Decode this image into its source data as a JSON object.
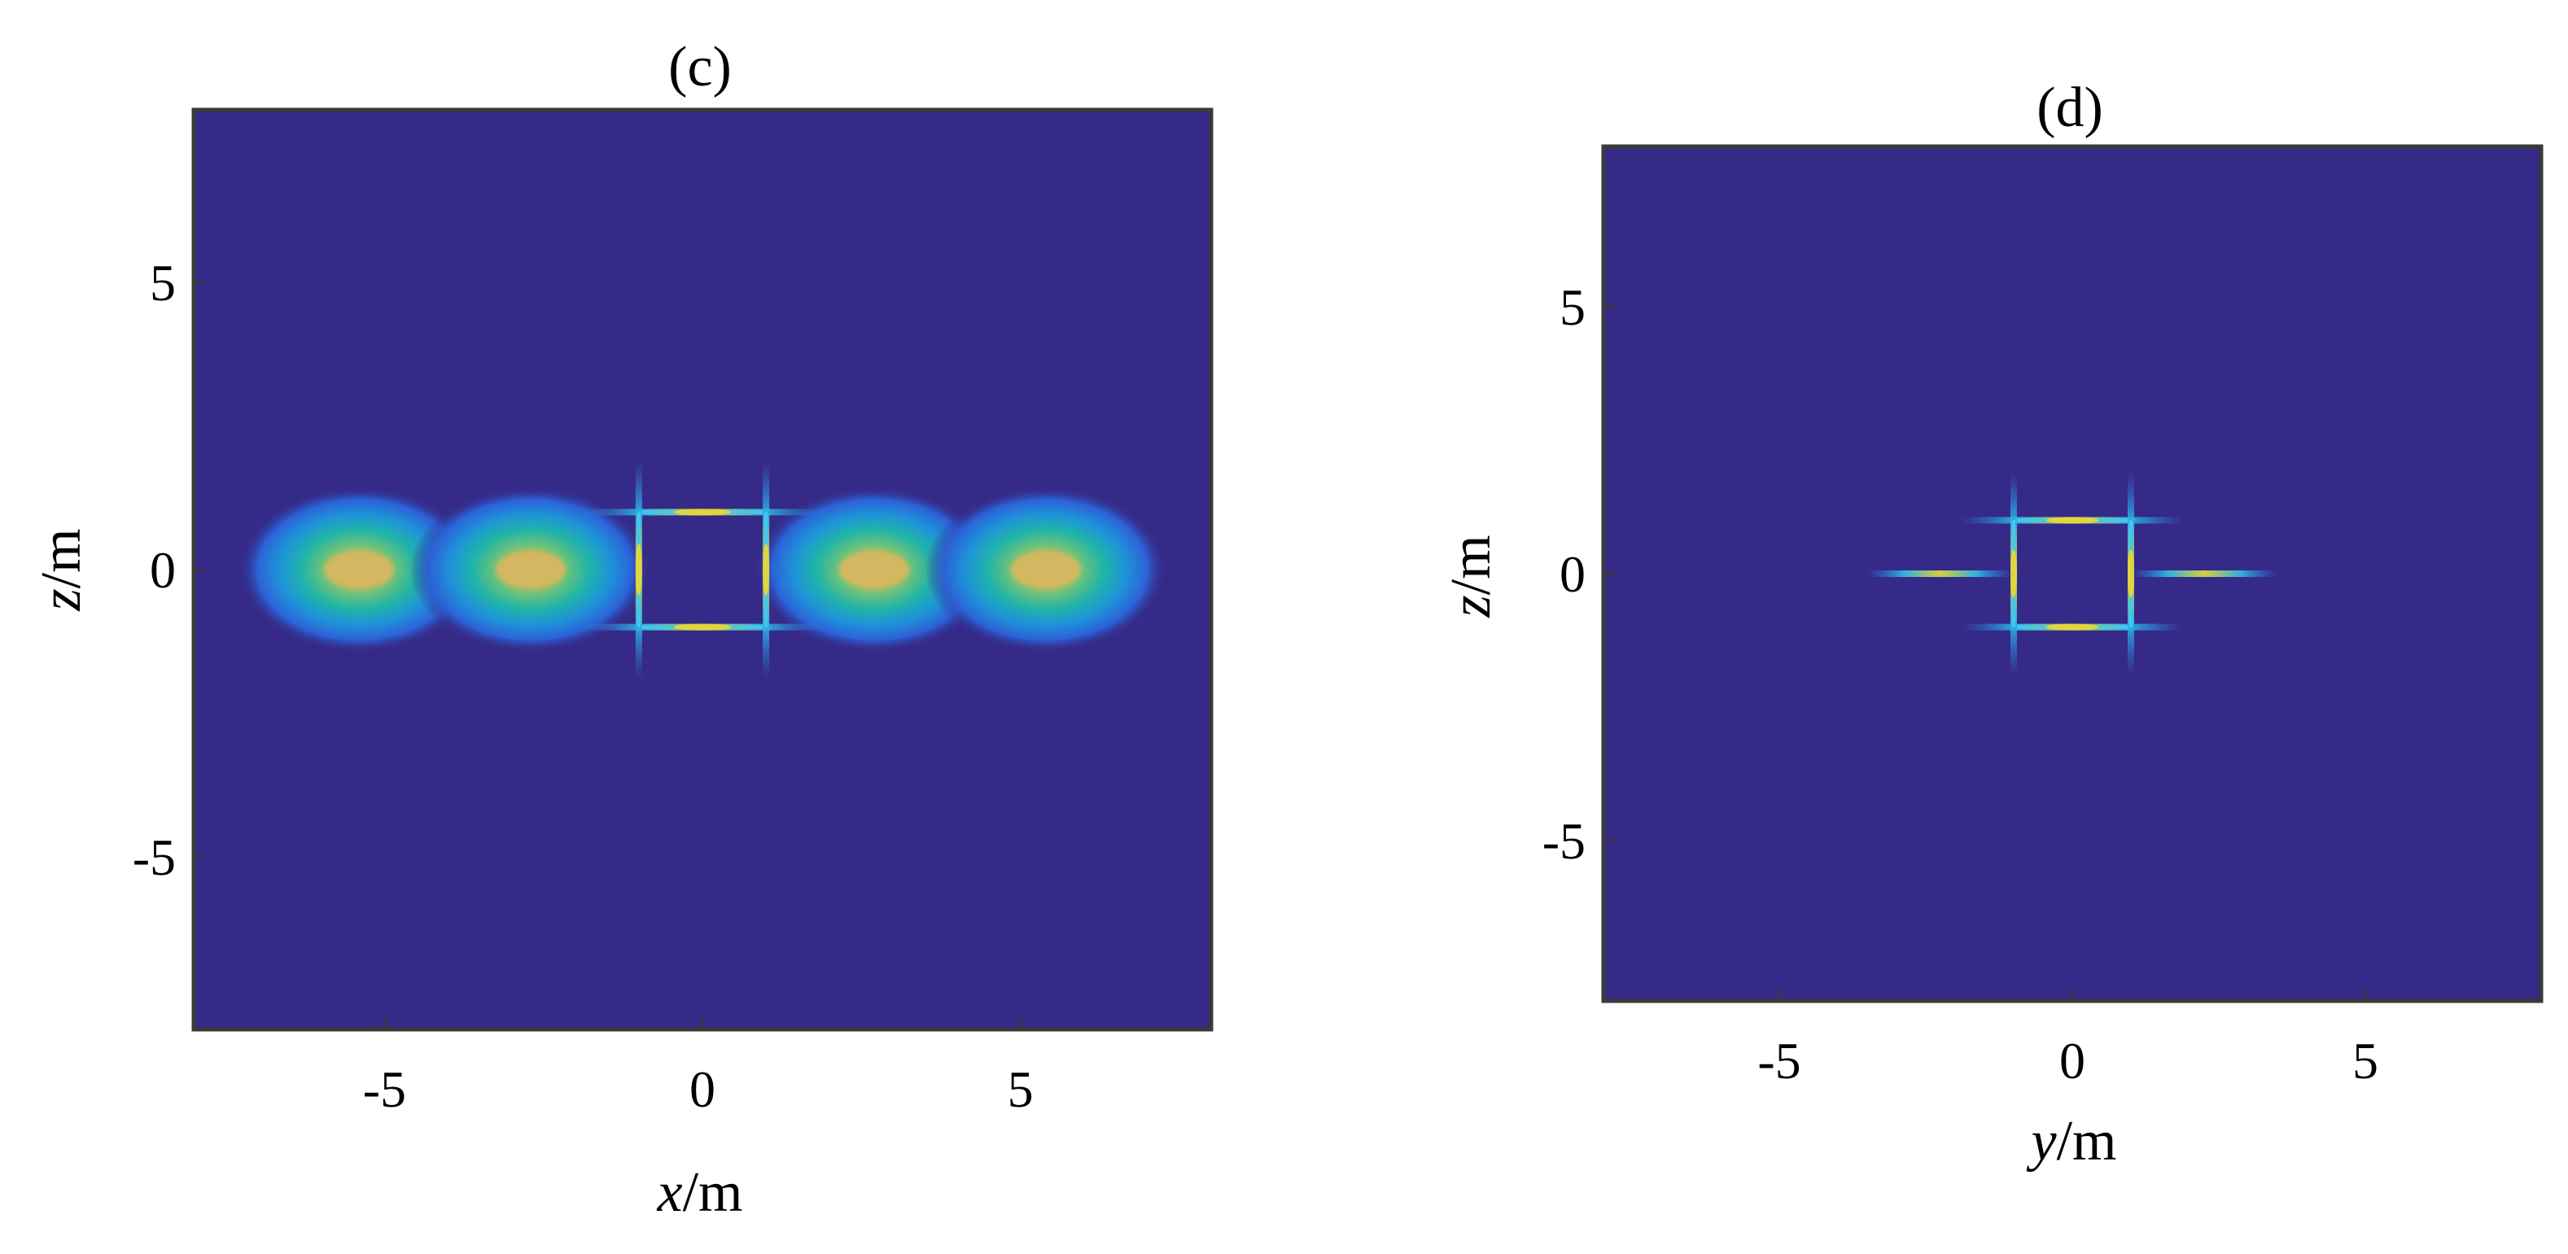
{
  "chart_data": [
    {
      "type": "heatmap",
      "title": "(c)",
      "xlabel": {
        "var": "x",
        "unit": "/m"
      },
      "ylabel": {
        "var": "z",
        "unit": "/m"
      },
      "xlim": [
        -8,
        8
      ],
      "ylim": [
        -8,
        8
      ],
      "xticks": [
        -5,
        0,
        5
      ],
      "yticks": [
        5,
        0,
        -5
      ],
      "xtick_labels": [
        "-5",
        "0",
        "5"
      ],
      "ytick_labels": [
        "5",
        "0",
        "-5"
      ],
      "colormap": "parula",
      "background_color": "#352a87",
      "grid": false,
      "features": {
        "blobs": [
          {
            "x": -5.4,
            "z": 0.0,
            "rx": 1.9,
            "rz": 1.45
          },
          {
            "x": -2.7,
            "z": 0.0,
            "rx": 1.9,
            "rz": 1.45
          },
          {
            "x": 2.7,
            "z": 0.0,
            "rx": 1.9,
            "rz": 1.45
          },
          {
            "x": 5.4,
            "z": 0.0,
            "rx": 1.9,
            "rz": 1.45
          }
        ],
        "square": {
          "xmin": -1,
          "xmax": 1,
          "zmin": -1,
          "zmax": 1
        }
      }
    },
    {
      "type": "heatmap",
      "title": "(d)",
      "xlabel": {
        "var": "y",
        "unit": "/m"
      },
      "ylabel": {
        "var": "z",
        "unit": "/m"
      },
      "xlim": [
        -8,
        8
      ],
      "ylim": [
        -8,
        8
      ],
      "xticks": [
        -5,
        0,
        5
      ],
      "yticks": [
        5,
        0,
        -5
      ],
      "xtick_labels": [
        "-5",
        "0",
        "5"
      ],
      "ytick_labels": [
        "5",
        "0",
        "-5"
      ],
      "colormap": "parula",
      "background_color": "#352a87",
      "grid": false,
      "features": {
        "blobs": [],
        "square": {
          "xmin": -1,
          "xmax": 1,
          "zmin": -1,
          "zmax": 1
        },
        "streaks": [
          {
            "x1": -3.5,
            "x2": -1.0,
            "z": 0.0
          },
          {
            "x1": 1.0,
            "x2": 3.5,
            "z": 0.0
          }
        ]
      }
    }
  ]
}
